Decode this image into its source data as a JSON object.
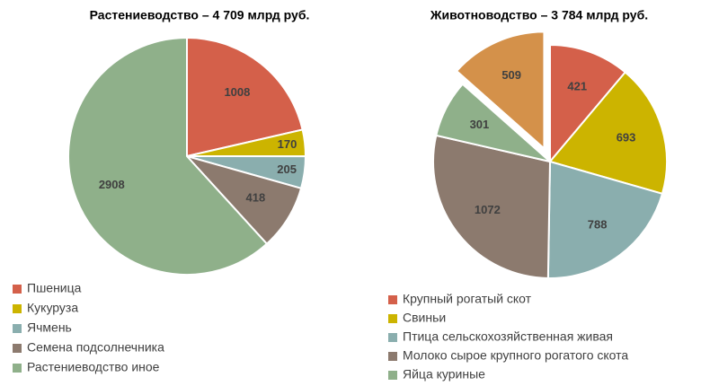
{
  "chart_data": [
    {
      "type": "pie",
      "title": "Растениеводство – 4 709  млрд руб.",
      "categories": [
        "Пшеница",
        "Кукуруза",
        "Ячмень",
        "Семена подсолнечника",
        "Растениеводство иное"
      ],
      "values": [
        1008,
        170,
        205,
        418,
        2908
      ],
      "colors": [
        "#d4604a",
        "#ccb400",
        "#8aaeae",
        "#8c7a6e",
        "#8fb08a"
      ]
    },
    {
      "type": "pie",
      "title": "Животноводство – 3 784 млрд руб.",
      "categories": [
        "Крупный рогатый скот",
        "Свиньи",
        "Птица сельскохозяйственная живая",
        "Молоко сырое крупного рогатого скота",
        "Яйца куриные",
        null
      ],
      "values": [
        421,
        693,
        788,
        1072,
        301,
        509
      ],
      "colors": [
        "#d4604a",
        "#ccb400",
        "#8aaeae",
        "#8c7a6e",
        "#8fb08a",
        "#d4914a"
      ]
    }
  ]
}
